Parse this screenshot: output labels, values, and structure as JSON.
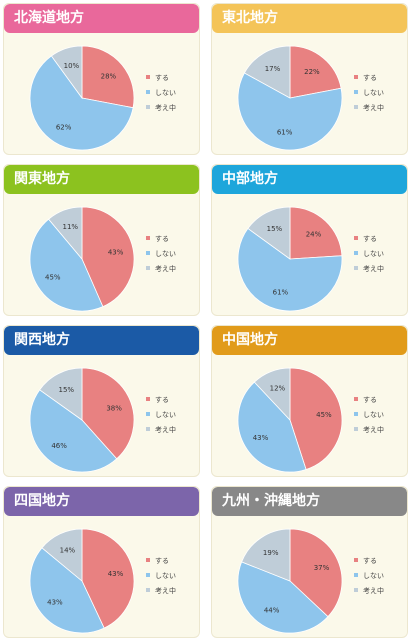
{
  "colors": {
    "suru": "#e88181",
    "shinai": "#8ec5ec",
    "kangaechu": "#bfcdd8",
    "panel_bg": "#fbf9ea"
  },
  "chart_data": [
    {
      "type": "pie",
      "title": "北海道地方",
      "header_color": "#e9689b",
      "slices": [
        {
          "label": "する",
          "value": 28
        },
        {
          "label": "しない",
          "value": 62
        },
        {
          "label": "考え中",
          "value": 10
        }
      ]
    },
    {
      "type": "pie",
      "title": "東北地方",
      "header_color": "#f4c458",
      "slices": [
        {
          "label": "する",
          "value": 22
        },
        {
          "label": "しない",
          "value": 61
        },
        {
          "label": "考え中",
          "value": 17
        }
      ]
    },
    {
      "type": "pie",
      "title": "関東地方",
      "header_color": "#8cc21f",
      "slices": [
        {
          "label": "する",
          "value": 43
        },
        {
          "label": "しない",
          "value": 45
        },
        {
          "label": "考え中",
          "value": 11
        }
      ]
    },
    {
      "type": "pie",
      "title": "中部地方",
      "header_color": "#1ea6db",
      "slices": [
        {
          "label": "する",
          "value": 24
        },
        {
          "label": "しない",
          "value": 61
        },
        {
          "label": "考え中",
          "value": 15
        }
      ]
    },
    {
      "type": "pie",
      "title": "関西地方",
      "header_color": "#1b5aa6",
      "slices": [
        {
          "label": "する",
          "value": 38
        },
        {
          "label": "しない",
          "value": 46
        },
        {
          "label": "考え中",
          "value": 15
        }
      ]
    },
    {
      "type": "pie",
      "title": "中国地方",
      "header_color": "#e19b1a",
      "slices": [
        {
          "label": "する",
          "value": 45
        },
        {
          "label": "しない",
          "value": 43
        },
        {
          "label": "考え中",
          "value": 12
        }
      ]
    },
    {
      "type": "pie",
      "title": "四国地方",
      "header_color": "#7c65aa",
      "slices": [
        {
          "label": "する",
          "value": 43
        },
        {
          "label": "しない",
          "value": 43
        },
        {
          "label": "考え中",
          "value": 14
        }
      ]
    },
    {
      "type": "pie",
      "title": "九州・沖縄地方",
      "header_color": "#888888",
      "slices": [
        {
          "label": "する",
          "value": 37
        },
        {
          "label": "しない",
          "value": 44
        },
        {
          "label": "考え中",
          "value": 19
        }
      ]
    }
  ]
}
